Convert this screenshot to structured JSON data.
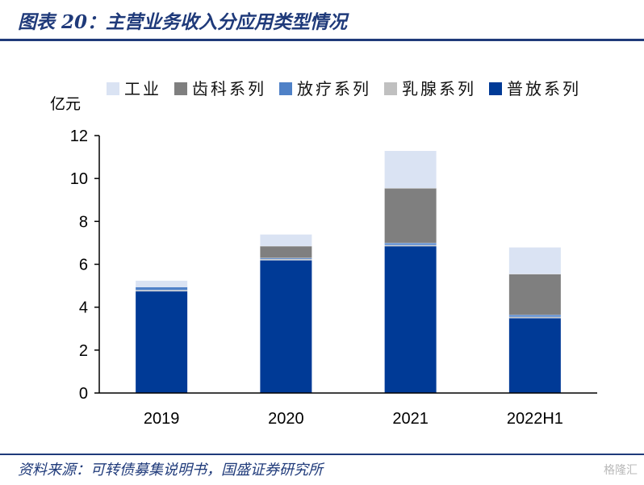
{
  "header": {
    "title": "图表 20：主营业务收入分应用类型情况"
  },
  "footer": {
    "source": "资料来源：可转债募集说明书，国盛证券研究所",
    "watermark": "格隆汇"
  },
  "chart_data": {
    "type": "bar",
    "stacked": true,
    "title": "图表 20：主营业务收入分应用类型情况",
    "ylabel": "亿元",
    "xlabel": "",
    "ylim": [
      0,
      12
    ],
    "yticks": [
      0,
      2,
      4,
      6,
      8,
      10,
      12
    ],
    "categories": [
      "2019",
      "2020",
      "2021",
      "2022H1"
    ],
    "series": [
      {
        "name": "普放系列",
        "color": "#003a96",
        "values": [
          4.75,
          6.2,
          6.85,
          3.5
        ]
      },
      {
        "name": "乳腺系列",
        "color": "#c0c0c0",
        "values": [
          0.05,
          0.05,
          0.05,
          0.05
        ]
      },
      {
        "name": "放疗系列",
        "color": "#4f81c7",
        "values": [
          0.15,
          0.05,
          0.1,
          0.1
        ]
      },
      {
        "name": "齿科系列",
        "color": "#7f7f7f",
        "values": [
          0.0,
          0.55,
          2.55,
          1.9
        ]
      },
      {
        "name": "工业",
        "color": "#dae3f3",
        "values": [
          0.3,
          0.55,
          1.75,
          1.25
        ]
      }
    ],
    "legend_order": [
      "工业",
      "齿科系列",
      "放疗系列",
      "乳腺系列",
      "普放系列"
    ],
    "legend_position": "top",
    "grid": false
  }
}
